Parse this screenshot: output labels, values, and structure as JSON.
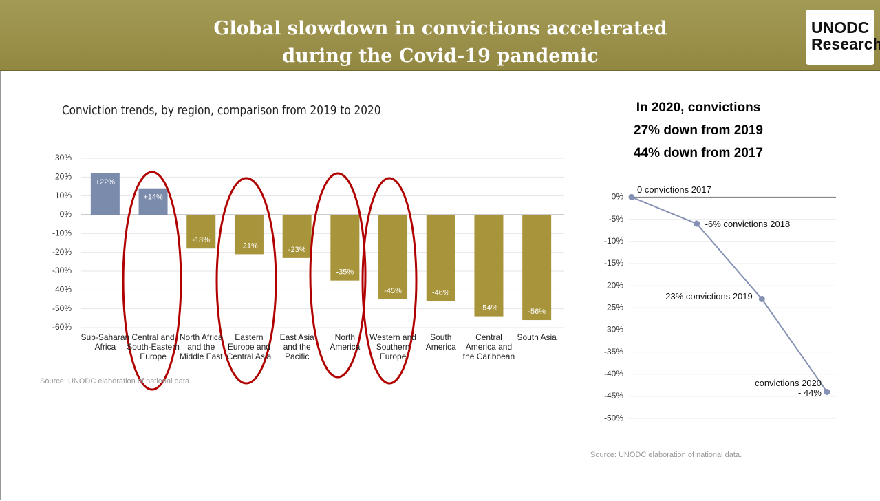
{
  "header": {
    "title": "Global slowdown in convictions accelerated\nduring the Covid-19 pandemic",
    "logo": "UNODC\nResearch"
  },
  "chart_data": [
    {
      "type": "bar",
      "title": "Conviction trends, by region, comparison from 2019 to 2020",
      "categories": [
        "Sub-Saharan\nAfrica",
        "Central and\nSouth-Eastern\nEurope",
        "North Africa\nand the\nMiddle East",
        "Eastern\nEurope and\nCentral Asia",
        "East Asia\nand the\nPacific",
        "North\nAmerica",
        "Western and\nSouthern\nEurope",
        "South\nAmerica",
        "Central\nAmerica and\nthe Caribbean",
        "South Asia"
      ],
      "values": [
        22,
        14,
        -18,
        -21,
        -23,
        -35,
        -45,
        -46,
        -54,
        -56
      ],
      "value_labels": [
        "+22%",
        "+14%",
        "-18%",
        "-21%",
        "-23%",
        "-35%",
        "-45%",
        "-46%",
        "-54%",
        "-56%"
      ],
      "colors": [
        "#7b8bab",
        "#7b8bab",
        "#a8943a",
        "#a8943a",
        "#a8943a",
        "#a8943a",
        "#a8943a",
        "#a8943a",
        "#a8943a",
        "#a8943a"
      ],
      "ylim": [
        -60,
        30
      ],
      "yticks": [
        {
          "value": 30,
          "label": "30%"
        },
        {
          "value": 20,
          "label": "20%"
        },
        {
          "value": 10,
          "label": "10%"
        },
        {
          "value": 0,
          "label": "0%"
        },
        {
          "value": -10,
          "label": "-10%"
        },
        {
          "value": -20,
          "label": "-20%"
        },
        {
          "value": -30,
          "label": "-30%"
        },
        {
          "value": -40,
          "label": "-40%"
        },
        {
          "value": -50,
          "label": "-50%"
        },
        {
          "value": -60,
          "label": "-60%"
        }
      ],
      "grid": true,
      "source": "Source: UNODC elaboration of national data."
    },
    {
      "type": "line",
      "title": "In 2020, convictions\n27% down from 2019\n 44% down from 2017",
      "values": [
        0,
        -6,
        -23,
        -44
      ],
      "value_labels": [
        "0  convictions 2017",
        "-6% convictions 2018",
        "- 23% convictions 2019",
        "convictions 2020\n-  44%"
      ],
      "color": "#8591b3",
      "ylim": [
        -52,
        1
      ],
      "yticks": [
        {
          "value": 0,
          "label": "0%"
        },
        {
          "value": -5,
          "label": "-5%"
        },
        {
          "value": -10,
          "label": "-10%"
        },
        {
          "value": -15,
          "label": "-15%"
        },
        {
          "value": -20,
          "label": "-20%"
        },
        {
          "value": -25,
          "label": "-25%"
        },
        {
          "value": -30,
          "label": "-30%"
        },
        {
          "value": -35,
          "label": "-35%"
        },
        {
          "value": -40,
          "label": "-40%"
        },
        {
          "value": -45,
          "label": "-45%"
        },
        {
          "value": -50,
          "label": "-50%"
        }
      ],
      "grid": true,
      "source": "Source: UNODC elaboration of national data."
    }
  ]
}
